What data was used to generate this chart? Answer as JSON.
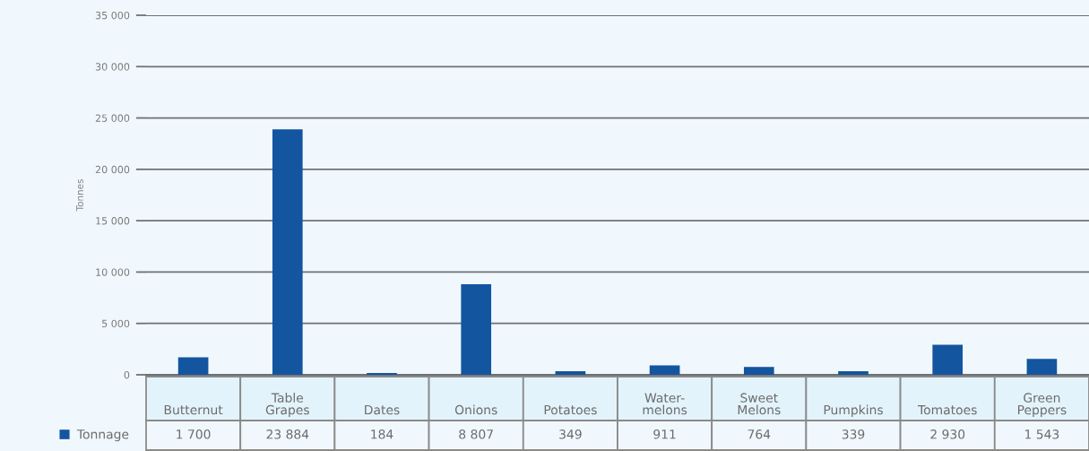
{
  "chart_data": {
    "type": "bar",
    "ylabel": "Tonnes",
    "categories": [
      "Butternut",
      "Table\nGrapes",
      "Dates",
      "Onions",
      "Potatoes",
      "Water-\nmelons",
      "Sweet\nMelons",
      "Pumpkins",
      "Tomatoes",
      "Green\nPeppers"
    ],
    "series": [
      {
        "name": "Tonnage",
        "color": "#13559f",
        "values": [
          1700,
          23884,
          184,
          8807,
          349,
          911,
          764,
          339,
          2930,
          1543
        ],
        "value_labels": [
          "1 700",
          "23 884",
          "184",
          "8 807",
          "349",
          "911",
          "764",
          "339",
          "2 930",
          "1 543"
        ]
      }
    ],
    "ylim": [
      0,
      35000
    ],
    "yticks": [
      0,
      {
        "value": 5000,
        "label": "5 000"
      },
      {
        "value": 10000,
        "label": "10 000"
      },
      {
        "value": 15000,
        "label": "15 000"
      },
      {
        "value": 20000,
        "label": "20 000"
      },
      {
        "value": 25000,
        "label": "25 000"
      },
      {
        "value": 30000,
        "label": "30 000"
      },
      {
        "value": 35000,
        "label": "35 000"
      }
    ],
    "grid": "y",
    "legend": "bottom left"
  }
}
